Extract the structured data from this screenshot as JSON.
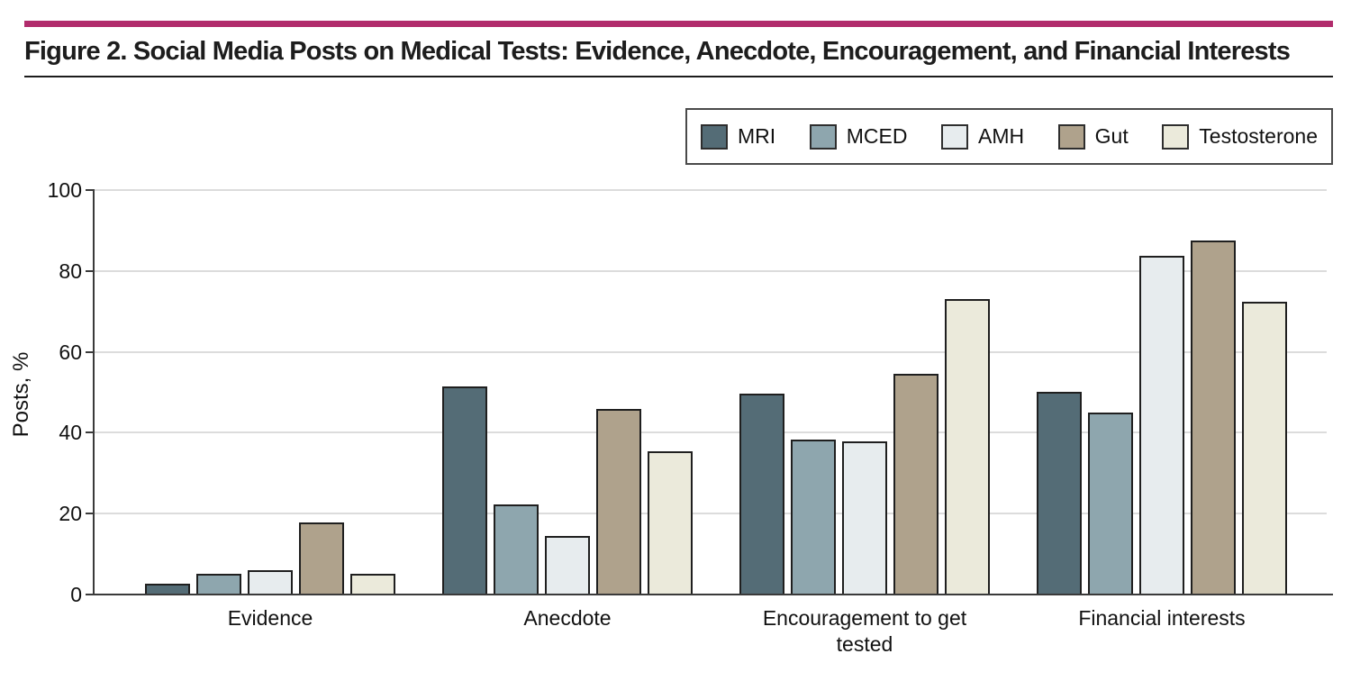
{
  "figure": {
    "title": "Figure 2. Social Media Posts on Medical Tests: Evidence, Anecdote, Encouragement, and Financial Interests",
    "accent_bar_color": "#b12c6c"
  },
  "chart_data": {
    "type": "bar",
    "title": "Social Media Posts on Medical Tests: Evidence, Anecdote, Encouragement, and Financial Interests",
    "xlabel": "",
    "ylabel": "Posts, %",
    "ylim": [
      0,
      100
    ],
    "yticks": [
      0,
      20,
      40,
      60,
      80,
      100
    ],
    "grid": true,
    "legend_position": "top-right",
    "categories": [
      "Evidence",
      "Anecdote",
      "Encouragement to get tested",
      "Financial interests"
    ],
    "series": [
      {
        "name": "MRI",
        "color": "#546c76",
        "values": [
          2.5,
          51.3,
          49.4,
          49.8
        ]
      },
      {
        "name": "MCED",
        "color": "#8ea6ae",
        "values": [
          4.8,
          22.1,
          38.0,
          44.7
        ]
      },
      {
        "name": "AMH",
        "color": "#e7ecee",
        "values": [
          5.8,
          14.3,
          37.6,
          83.5
        ]
      },
      {
        "name": "Gut",
        "color": "#afa28c",
        "values": [
          17.5,
          45.7,
          54.4,
          87.3
        ]
      },
      {
        "name": "Testosterone",
        "color": "#ebeadb",
        "values": [
          4.8,
          35.2,
          72.8,
          72.1
        ]
      }
    ]
  }
}
